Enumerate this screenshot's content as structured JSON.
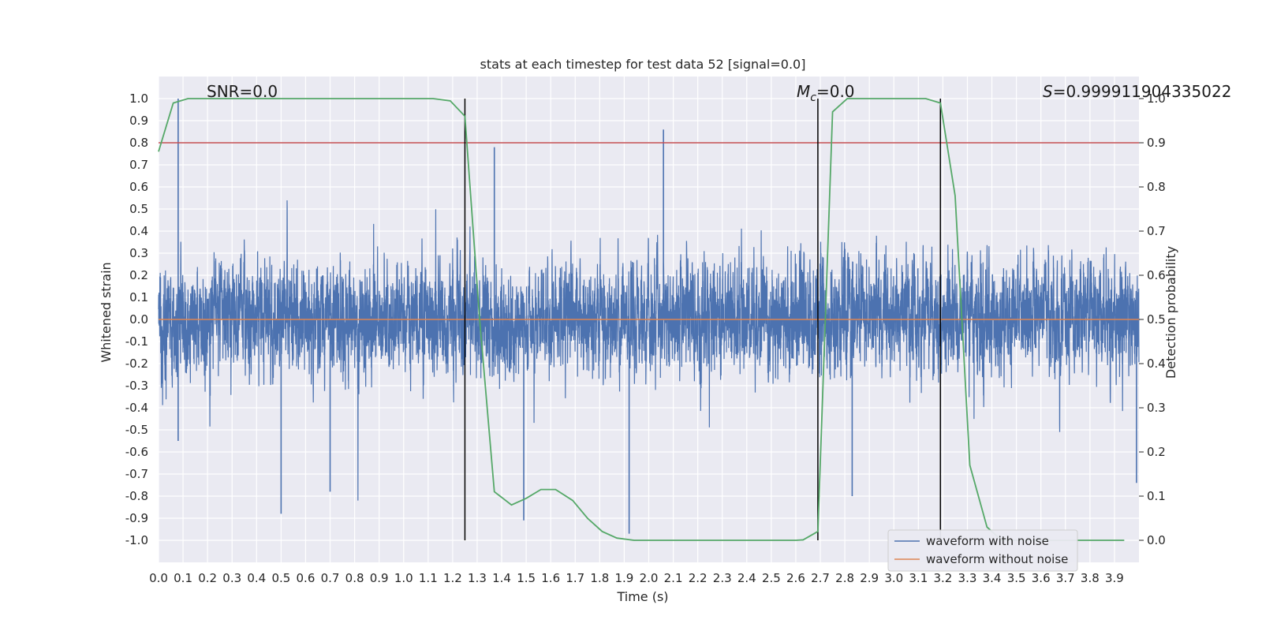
{
  "chart_data": {
    "type": "line",
    "title": "stats at each timestep for test data 52 [signal=0.0]",
    "xlabel": "Time (s)",
    "ylabel": "Whitened strain",
    "y2label": "Detection probability",
    "xlim": [
      0.0,
      4.0
    ],
    "ylim": [
      -1.1,
      1.1
    ],
    "y2lim": [
      -0.05,
      1.05
    ],
    "x_ticks": [
      "0.0",
      "0.1",
      "0.2",
      "0.3",
      "0.4",
      "0.5",
      "0.6",
      "0.7",
      "0.8",
      "0.9",
      "1.0",
      "1.1",
      "1.2",
      "1.3",
      "1.4",
      "1.5",
      "1.6",
      "1.7",
      "1.8",
      "1.9",
      "2.0",
      "2.1",
      "2.2",
      "2.3",
      "2.4",
      "2.5",
      "2.6",
      "2.7",
      "2.8",
      "2.9",
      "3.0",
      "3.1",
      "3.2",
      "3.3",
      "3.4",
      "3.5",
      "3.6",
      "3.7",
      "3.8",
      "3.9"
    ],
    "y_ticks": [
      "1.0",
      "0.9",
      "0.8",
      "0.7",
      "0.6",
      "0.5",
      "0.4",
      "0.3",
      "0.2",
      "0.1",
      "0.0",
      "-0.1",
      "-0.2",
      "-0.3",
      "-0.4",
      "-0.5",
      "-0.6",
      "-0.7",
      "-0.8",
      "-0.9",
      "-1.0"
    ],
    "y2_ticks": [
      "1.0",
      "0.9",
      "0.8",
      "0.7",
      "0.6",
      "0.5",
      "0.4",
      "0.3",
      "0.2",
      "0.1",
      "0.0"
    ],
    "annotations": {
      "snr": "SNR=0.0",
      "mc_symbol": "M",
      "mc_sub": "c",
      "mc_value": "=0.0",
      "s_symbol": "S",
      "s_value": "=0.999911904335022"
    },
    "threshold": {
      "y2": 0.9,
      "color": "#c44e52"
    },
    "vertical_lines": [
      1.25,
      2.69,
      3.19
    ],
    "series": [
      {
        "name": "waveform with noise",
        "color": "#4c72b0",
        "axis": "left",
        "style": "noise",
        "n_samples": 8192,
        "envelope": 0.32,
        "spikes": [
          {
            "x": 0.08,
            "y": 1.0
          },
          {
            "x": 0.08,
            "y": -0.55
          },
          {
            "x": 2.06,
            "y": 0.86
          },
          {
            "x": 1.92,
            "y": -0.97
          },
          {
            "x": 0.5,
            "y": -0.88
          },
          {
            "x": 1.49,
            "y": -0.91
          },
          {
            "x": 1.37,
            "y": 0.78
          },
          {
            "x": 0.7,
            "y": -0.78
          },
          {
            "x": 2.83,
            "y": -0.8
          },
          {
            "x": 3.99,
            "y": -0.74
          }
        ]
      },
      {
        "name": "waveform without noise",
        "color": "#dd8452",
        "axis": "left",
        "style": "flat",
        "x": [
          0.0,
          4.0
        ],
        "y": [
          0.0,
          0.0
        ]
      },
      {
        "name": "detection probability",
        "color": "#55a868",
        "axis": "right",
        "x": [
          0.0,
          0.06,
          0.12,
          0.2,
          0.3,
          0.5,
          0.8,
          1.0,
          1.12,
          1.19,
          1.25,
          1.31,
          1.37,
          1.44,
          1.5,
          1.56,
          1.62,
          1.69,
          1.75,
          1.81,
          1.87,
          1.94,
          2.0,
          2.3,
          2.6,
          2.63,
          2.69,
          2.75,
          2.81,
          2.88,
          2.94,
          3.0,
          3.13,
          3.19,
          3.25,
          3.31,
          3.38,
          3.44,
          3.5,
          3.94
        ],
        "y": [
          0.88,
          0.99,
          1.0,
          1.0,
          1.0,
          1.0,
          1.0,
          1.0,
          1.0,
          0.995,
          0.96,
          0.5,
          0.11,
          0.08,
          0.095,
          0.115,
          0.115,
          0.09,
          0.05,
          0.02,
          0.005,
          0.0,
          0.0,
          0.0,
          0.0,
          0.001,
          0.02,
          0.97,
          1.0,
          1.0,
          1.0,
          1.0,
          1.0,
          0.99,
          0.78,
          0.17,
          0.03,
          0.0,
          0.0,
          0.0
        ]
      }
    ],
    "legend": {
      "position": "lower-right",
      "entries": [
        {
          "label": "waveform with noise",
          "color": "#4c72b0"
        },
        {
          "label": "waveform without noise",
          "color": "#dd8452"
        }
      ]
    }
  }
}
